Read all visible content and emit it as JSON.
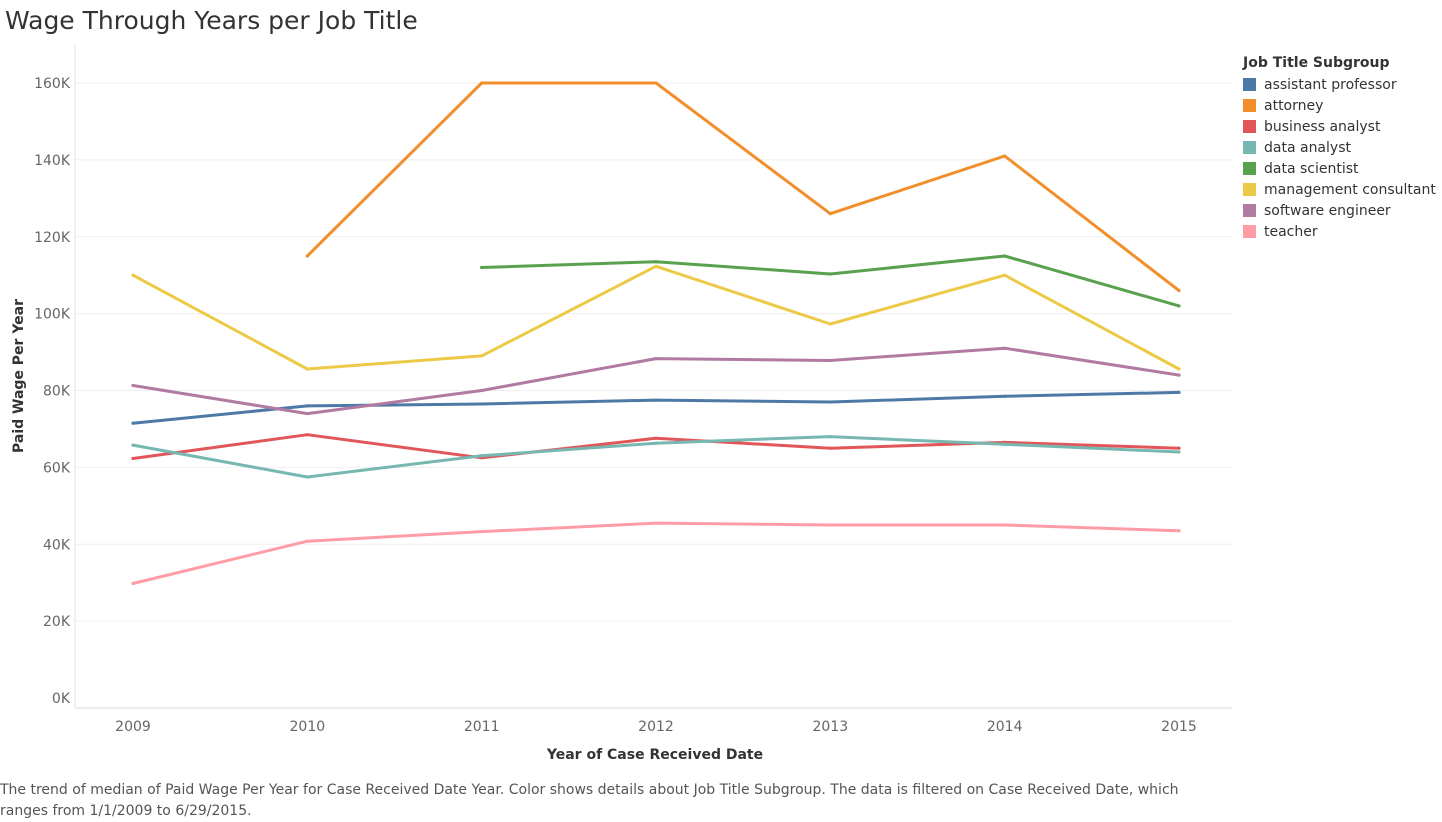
{
  "chart_data": {
    "type": "line",
    "title": "Wage Through Years per Job Title",
    "xlabel": "Year of Case Received Date",
    "ylabel": "Paid Wage Per Year",
    "x": [
      2009,
      2010,
      2011,
      2012,
      2013,
      2014,
      2015
    ],
    "x_tick_labels": [
      "2009",
      "2010",
      "2011",
      "2012",
      "2013",
      "2014",
      "2015"
    ],
    "ylim": [
      0,
      168000
    ],
    "y_ticks": [
      0,
      20000,
      40000,
      60000,
      80000,
      100000,
      120000,
      140000,
      160000
    ],
    "y_tick_labels": [
      "0K",
      "20K",
      "40K",
      "60K",
      "80K",
      "100K",
      "120K",
      "140K",
      "160K"
    ],
    "grid": "horizontal",
    "legend_position": "right",
    "legend_title": "Job Title Subgroup",
    "series": [
      {
        "name": "assistant professor",
        "color": "#4e79a7",
        "values": [
          71500,
          76000,
          76500,
          77500,
          77000,
          78500,
          79500
        ]
      },
      {
        "name": "attorney",
        "color": "#f28e2b",
        "values": [
          null,
          115000,
          160000,
          160000,
          126000,
          141000,
          106000
        ]
      },
      {
        "name": "business analyst",
        "color": "#e15759",
        "values": [
          62300,
          68500,
          62500,
          67600,
          65000,
          66500,
          65000
        ]
      },
      {
        "name": "data analyst",
        "color": "#76b7b2",
        "values": [
          65800,
          57500,
          63000,
          66300,
          68000,
          66000,
          64000
        ]
      },
      {
        "name": "data scientist",
        "color": "#59a14f",
        "values": [
          null,
          null,
          112000,
          113500,
          110300,
          115000,
          102000
        ]
      },
      {
        "name": "management consultant",
        "color": "#edc948",
        "values": [
          110000,
          85600,
          89000,
          112300,
          97300,
          110000,
          85600
        ]
      },
      {
        "name": "software engineer",
        "color": "#b07aa1",
        "values": [
          81300,
          74000,
          80000,
          88300,
          87800,
          91000,
          84000
        ]
      },
      {
        "name": "teacher",
        "color": "#ff9da7",
        "values": [
          29800,
          40800,
          43300,
          45500,
          45000,
          45000,
          43500
        ]
      }
    ]
  },
  "caption": "The trend of median of Paid Wage Per Year for Case Received Date Year.  Color shows details about Job Title Subgroup. The data is filtered on Case Received Date, which ranges from 1/1/2009 to 6/29/2015."
}
